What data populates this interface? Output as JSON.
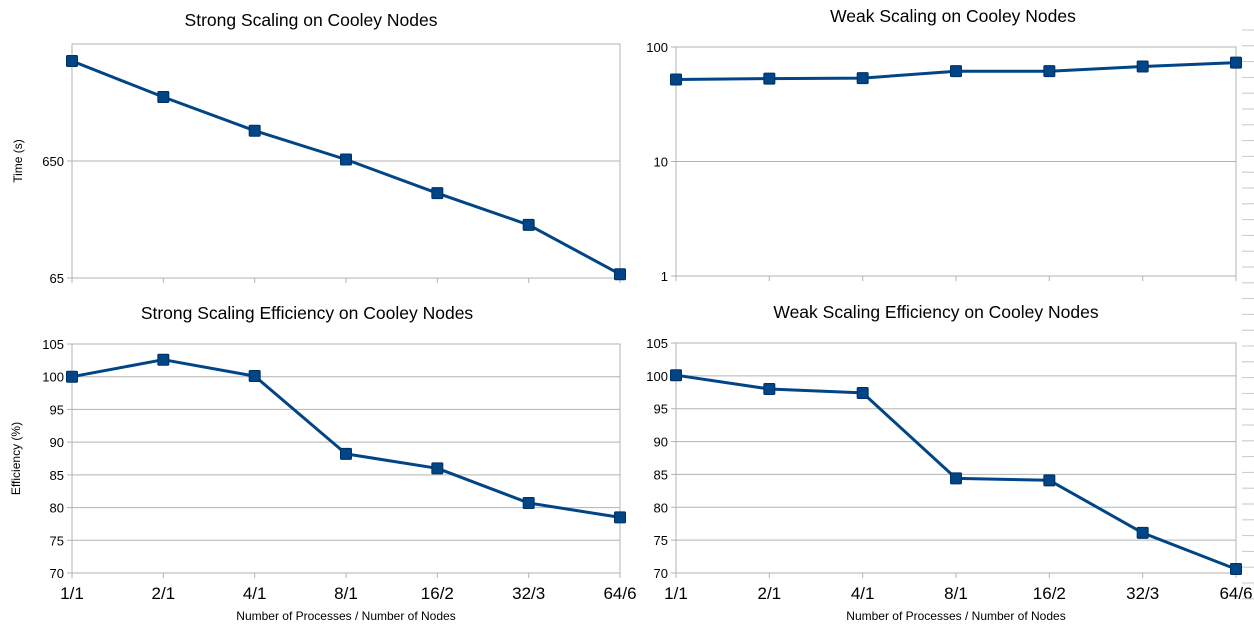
{
  "chart_data": [
    {
      "type": "line",
      "title": "Strong Scaling on Cooley Nodes",
      "ylabel": "Time (s)",
      "xlabel": "",
      "categories": [
        "1/1",
        "2/1",
        "4/1",
        "8/1",
        "16/2",
        "32/3",
        "64/6"
      ],
      "ytick_labels": [
        "65",
        "650"
      ],
      "ylim": [
        65,
        6500
      ],
      "yscale": "log",
      "series": [
        {
          "values": [
            4650,
            2290,
            1180,
            670,
            345,
            185,
            70
          ]
        }
      ],
      "grid": true
    },
    {
      "type": "line",
      "title": "Weak Scaling on Cooley Nodes",
      "ylabel": "",
      "xlabel": "",
      "categories": [
        "1/1",
        "2/1",
        "4/1",
        "8/1",
        "16/2",
        "32/3",
        "64/6"
      ],
      "ytick_labels": [
        "1",
        "10",
        "100"
      ],
      "ylim": [
        1,
        100
      ],
      "yscale": "log",
      "series": [
        {
          "values": [
            52,
            53,
            53.5,
            61.5,
            61.5,
            67.5,
            73
          ]
        }
      ],
      "grid": true
    },
    {
      "type": "line",
      "title": "Strong Scaling Efficiency on Cooley Nodes",
      "ylabel": "Efficiency (%)",
      "xlabel": "Number of Processes / Number of Nodes",
      "categories": [
        "1/1",
        "2/1",
        "4/1",
        "8/1",
        "16/2",
        "32/3",
        "64/6"
      ],
      "ytick_labels": [
        "70",
        "75",
        "80",
        "85",
        "90",
        "95",
        "100",
        "105"
      ],
      "ylim": [
        70,
        105
      ],
      "series": [
        {
          "values": [
            100,
            102.6,
            100.1,
            88.2,
            86,
            80.7,
            78.5
          ]
        }
      ],
      "grid": true
    },
    {
      "type": "line",
      "title": "Weak Scaling Efficiency on Cooley Nodes",
      "ylabel": "",
      "xlabel": "Number of Processes / Number of Nodes",
      "categories": [
        "1/1",
        "2/1",
        "4/1",
        "8/1",
        "16/2",
        "32/3",
        "64/6"
      ],
      "ytick_labels": [
        "70",
        "75",
        "80",
        "85",
        "90",
        "95",
        "100",
        "105"
      ],
      "ylim": [
        70,
        105
      ],
      "series": [
        {
          "values": [
            100.1,
            98,
            97.4,
            84.4,
            84.1,
            76.1,
            70.6
          ]
        }
      ],
      "grid": true
    }
  ],
  "colors": {
    "series": "#004586",
    "grid": "#b3b3b3"
  }
}
